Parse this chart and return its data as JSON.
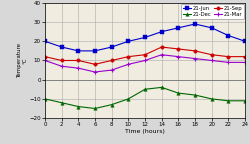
{
  "hours": [
    0,
    2,
    4,
    6,
    8,
    10,
    12,
    14,
    16,
    18,
    20,
    22,
    24
  ],
  "jun": [
    20,
    17,
    15,
    15,
    17,
    20,
    22,
    25,
    27,
    29,
    27,
    23,
    20
  ],
  "dec": [
    -10,
    -12,
    -14,
    -15,
    -13,
    -10,
    -5,
    -4,
    -7,
    -8,
    -10,
    -11,
    -11
  ],
  "sep": [
    12,
    10,
    10,
    8,
    10,
    12,
    13,
    17,
    16,
    15,
    13,
    12,
    12
  ],
  "mar": [
    10,
    7,
    6,
    4,
    5,
    8,
    10,
    13,
    12,
    11,
    10,
    9,
    9
  ],
  "jun_color": "#0000cc",
  "dec_color": "#006600",
  "sep_color": "#cc0000",
  "mar_color": "#9900cc",
  "bg_color": "#d8d8d8",
  "plot_bg_color": "#f0ece0",
  "ylim": [
    -20,
    40
  ],
  "xlim": [
    0,
    24
  ],
  "xlabel": "Time (hours)",
  "ylabel": "Temperature\n°C",
  "grid_color": "#aaaaaa",
  "yticks": [
    -20,
    -10,
    0,
    10,
    20,
    30,
    40
  ],
  "xticks": [
    0,
    2,
    4,
    6,
    8,
    10,
    12,
    14,
    16,
    18,
    20,
    22,
    24
  ]
}
